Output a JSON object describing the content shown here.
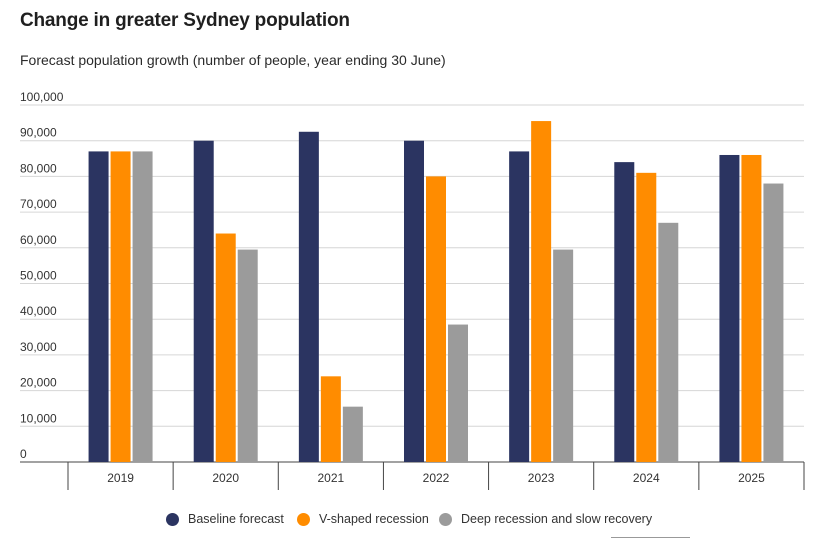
{
  "header": {
    "title": "Change in greater Sydney population",
    "subtitle": "Forecast population growth (number of people, year ending 30 June)"
  },
  "chart_data": {
    "type": "bar",
    "title": "Change in greater Sydney population",
    "subtitle": "Forecast population growth (number of people, year ending 30 June)",
    "xlabel": "",
    "ylabel": "",
    "ylim": [
      0,
      100000
    ],
    "yticks": [
      0,
      10000,
      20000,
      30000,
      40000,
      50000,
      60000,
      70000,
      80000,
      90000,
      100000
    ],
    "ytick_labels": [
      "0",
      "10,000",
      "20,000",
      "30,000",
      "40,000",
      "50,000",
      "60,000",
      "70,000",
      "80,000",
      "90,000",
      "100,000"
    ],
    "grid": true,
    "legend_position": "bottom",
    "categories": [
      "2019",
      "2020",
      "2021",
      "2022",
      "2023",
      "2024",
      "2025"
    ],
    "series": [
      {
        "name": "Baseline forecast",
        "color": "#2b3461",
        "values": [
          87000,
          90000,
          92500,
          90000,
          87000,
          84000,
          86000
        ]
      },
      {
        "name": "V-shaped recession",
        "color": "#ff8c00",
        "values": [
          87000,
          64000,
          24000,
          80000,
          95500,
          81000,
          86000
        ]
      },
      {
        "name": "Deep recession and slow recovery",
        "color": "#9b9b9b",
        "values": [
          87000,
          59500,
          15500,
          38500,
          59500,
          67000,
          78000
        ]
      }
    ]
  }
}
